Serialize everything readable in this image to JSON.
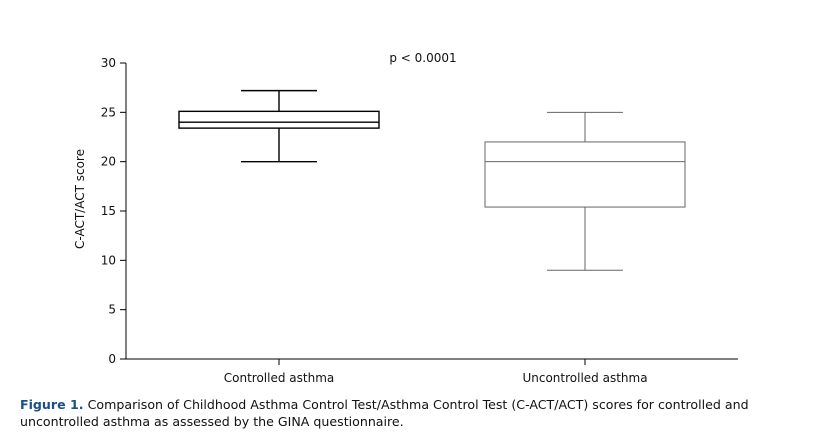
{
  "chart_data": {
    "type": "box",
    "ylabel": "C-ACT/ACT score",
    "ylim": [
      0,
      30
    ],
    "yticks": [
      0,
      5,
      10,
      15,
      20,
      25,
      30
    ],
    "annotation": "p < 0.0001",
    "categories": [
      "Controlled asthma",
      "Uncontrolled asthma"
    ],
    "boxes": [
      {
        "category": "Controlled asthma",
        "min": 20,
        "q1": 23.4,
        "median": 24,
        "q3": 25.1,
        "max": 27.2,
        "color": "#000000"
      },
      {
        "category": "Uncontrolled asthma",
        "min": 9,
        "q1": 15.4,
        "median": 20,
        "q3": 22,
        "max": 25,
        "color": "#666666"
      }
    ]
  },
  "caption": {
    "label": "Figure 1.",
    "text": " Comparison of Childhood Asthma Control Test/Asthma Control Test (C-ACT/ACT) scores for controlled and uncontrolled asthma as assessed by the GINA questionnaire."
  }
}
